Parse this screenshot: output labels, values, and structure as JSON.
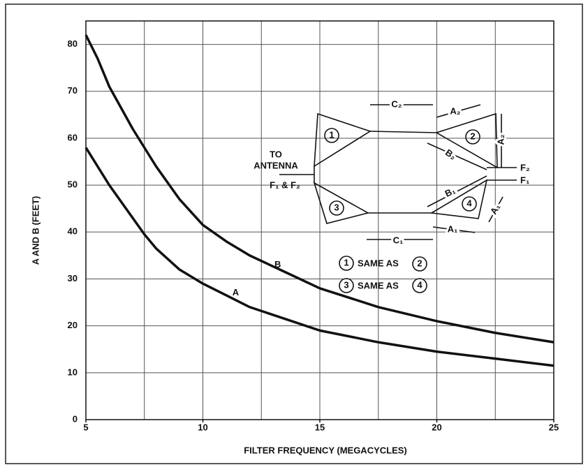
{
  "chart_data": {
    "type": "line",
    "xlabel": "FILTER FREQUENCY (MEGACYCLES)",
    "ylabel": "A AND B  (FEET)",
    "xlim": [
      5,
      25
    ],
    "xticks": [
      5,
      10,
      15,
      20,
      25
    ],
    "xgrid_lines": [
      5,
      7.5,
      10,
      12.5,
      15,
      17.5,
      20,
      22.5,
      25
    ],
    "ylim": [
      0,
      85
    ],
    "yticks": [
      0,
      10,
      20,
      30,
      40,
      50,
      60,
      70,
      80
    ],
    "grid": true,
    "x": [
      5,
      5.5,
      6,
      6.5,
      7,
      7.5,
      8,
      9,
      10,
      11,
      12,
      13.5,
      15,
      17.5,
      20,
      22.5,
      25
    ],
    "series": [
      {
        "name": "B",
        "color": "#111111",
        "values": [
          82,
          77,
          71,
          66.5,
          62,
          58,
          54,
          47,
          41.5,
          38,
          35,
          31.5,
          28,
          24,
          21,
          18.5,
          16.5
        ],
        "label_at": [
          13.2,
          33
        ]
      },
      {
        "name": "A",
        "color": "#111111",
        "values": [
          58,
          54,
          50,
          46.5,
          43,
          39.5,
          36.5,
          32,
          29,
          26.5,
          24,
          21.5,
          19,
          16.5,
          14.5,
          13,
          11.5
        ],
        "label_at": [
          11.4,
          27
        ]
      }
    ],
    "inset": {
      "to": "TO",
      "antenna": "ANTENNA",
      "feed": "F₁ & F₂",
      "n1": "1",
      "n2": "2",
      "n3": "3",
      "n4": "4",
      "c2": "C₂",
      "a2_top": "A₂",
      "a2_side": "A₂",
      "b2": "B₂",
      "b1": "B₁",
      "c1": "C₁",
      "a1_bottom": "A₁",
      "a1_side": "A₁",
      "f2": "F₂",
      "f1": "F₁",
      "same1": "SAME AS",
      "same2": "SAME AS",
      "l1": "1",
      "l2": "2",
      "l3": "3",
      "l4": "4"
    }
  }
}
